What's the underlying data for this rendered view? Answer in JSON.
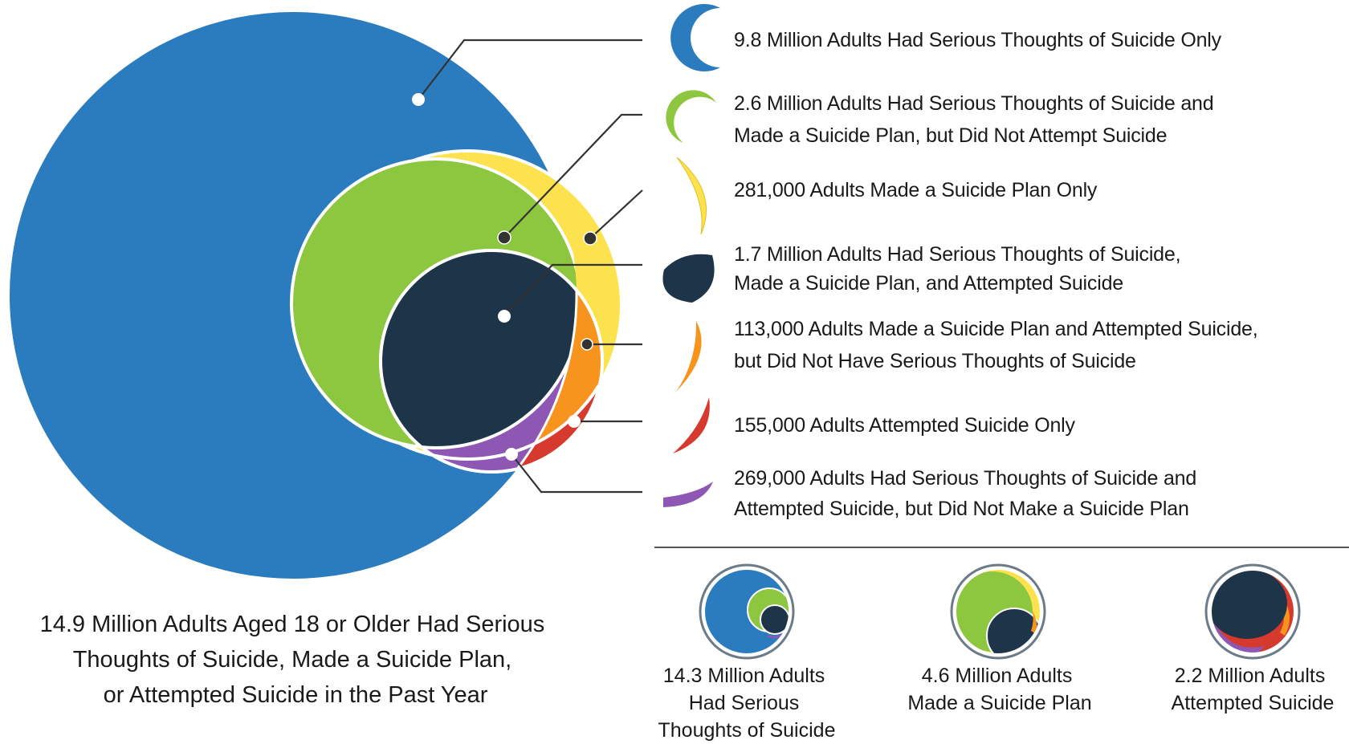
{
  "colors": {
    "thoughts_only": "#2b7bbf",
    "thoughts_plan": "#8dc63f",
    "plan_only": "#fde24f",
    "all_three": "#1d3449",
    "plan_attempt": "#f7941d",
    "attempt_only": "#d63a2f",
    "thoughts_attempt": "#8e57b3",
    "leader": "#333333",
    "divider": "#555555"
  },
  "legend": [
    {
      "key": "thoughts_only",
      "icon": "blue-crescent-icon",
      "lines": [
        "9.8 Million Adults Had Serious Thoughts of Suicide Only"
      ]
    },
    {
      "key": "thoughts_plan",
      "icon": "green-crescent-icon",
      "lines": [
        "2.6 Million Adults Had Serious Thoughts of Suicide and",
        "Made a Suicide Plan, but Did Not Attempt Suicide"
      ]
    },
    {
      "key": "plan_only",
      "icon": "yellow-crescent-icon",
      "lines": [
        "281,000 Adults Made a Suicide Plan Only"
      ]
    },
    {
      "key": "all_three",
      "icon": "navy-lens-icon",
      "lines": [
        "1.7 Million Adults Had Serious Thoughts of Suicide,",
        "Made a Suicide Plan, and Attempted Suicide"
      ]
    },
    {
      "key": "plan_attempt",
      "icon": "orange-sliver-icon",
      "lines": [
        "113,000 Adults Made a Suicide Plan and Attempted Suicide,",
        "but Did Not Have Serious Thoughts of Suicide"
      ]
    },
    {
      "key": "attempt_only",
      "icon": "red-sliver-icon",
      "lines": [
        "155,000 Adults Attempted Suicide Only"
      ]
    },
    {
      "key": "thoughts_attempt",
      "icon": "purple-sliver-icon",
      "lines": [
        "269,000 Adults Had Serious Thoughts of Suicide and",
        "Attempted Suicide, but Did Not Make a Suicide Plan"
      ]
    }
  ],
  "total": {
    "lines": [
      "14.9 Million Adults Aged 18 or Older Had Serious",
      "Thoughts of Suicide, Made a Suicide Plan,",
      "or Attempted Suicide in the Past Year"
    ]
  },
  "summaries": [
    {
      "icon": "thoughts-summary-icon",
      "lines": [
        "14.3 Million Adults",
        "Had Serious",
        "Thoughts of Suicide"
      ]
    },
    {
      "icon": "plan-summary-icon",
      "lines": [
        "4.6 Million Adults",
        "Made a Suicide Plan"
      ]
    },
    {
      "icon": "attempt-summary-icon",
      "lines": [
        "2.2 Million Adults",
        "Attempted Suicide"
      ]
    }
  ]
}
